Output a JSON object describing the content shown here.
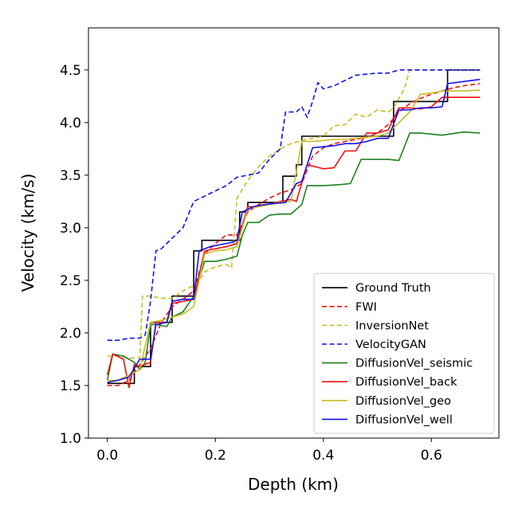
{
  "chart_data": {
    "type": "line",
    "title": "",
    "xlabel": "Depth (km)",
    "ylabel": "Velocity (km/s)",
    "xlim": [
      -0.035,
      0.725
    ],
    "ylim": [
      1.0,
      4.9
    ],
    "xticks": [
      0.0,
      0.2,
      0.4,
      0.6
    ],
    "xtick_labels": [
      "0.0",
      "0.2",
      "0.4",
      "0.6"
    ],
    "yticks": [
      1.0,
      1.5,
      2.0,
      2.5,
      3.0,
      3.5,
      4.0,
      4.5
    ],
    "ytick_labels": [
      "1.0",
      "1.5",
      "2.0",
      "2.5",
      "3.0",
      "3.5",
      "4.0",
      "4.5"
    ],
    "grid": false,
    "legend_position": "lower-right",
    "series": [
      {
        "name": "Ground Truth",
        "color": "#000000",
        "style": "solid",
        "x": [
          0,
          0.05,
          0.05,
          0.08,
          0.08,
          0.12,
          0.12,
          0.16,
          0.16,
          0.175,
          0.175,
          0.245,
          0.245,
          0.26,
          0.26,
          0.325,
          0.325,
          0.35,
          0.35,
          0.36,
          0.36,
          0.53,
          0.53,
          0.63,
          0.63,
          0.69
        ],
        "y": [
          1.52,
          1.52,
          1.68,
          1.68,
          2.1,
          2.1,
          2.35,
          2.35,
          2.78,
          2.78,
          2.88,
          2.88,
          3.15,
          3.15,
          3.24,
          3.24,
          3.49,
          3.49,
          3.6,
          3.6,
          3.87,
          3.87,
          4.2,
          4.2,
          4.5,
          4.5
        ]
      },
      {
        "name": "FWI",
        "color": "#ee1111",
        "style": "dashed",
        "x": [
          0,
          0.02,
          0.04,
          0.06,
          0.08,
          0.1,
          0.12,
          0.14,
          0.16,
          0.18,
          0.2,
          0.22,
          0.24,
          0.26,
          0.28,
          0.3,
          0.32,
          0.34,
          0.36,
          0.38,
          0.4,
          0.42,
          0.44,
          0.46,
          0.48,
          0.5,
          0.52,
          0.54,
          0.56,
          0.58,
          0.6,
          0.62,
          0.64,
          0.66,
          0.69
        ],
        "y": [
          1.5,
          1.5,
          1.55,
          1.7,
          1.85,
          2.1,
          2.25,
          2.32,
          2.4,
          2.75,
          2.85,
          2.93,
          2.93,
          3.15,
          3.22,
          3.28,
          3.33,
          3.36,
          3.42,
          3.68,
          3.76,
          3.8,
          3.82,
          3.84,
          3.86,
          3.9,
          3.98,
          4.1,
          4.18,
          4.23,
          4.27,
          4.3,
          4.33,
          4.35,
          4.37
        ]
      },
      {
        "name": "InversionNet",
        "color": "#c8be22",
        "style": "dashed",
        "x": [
          0,
          0.02,
          0.04,
          0.06,
          0.065,
          0.08,
          0.1,
          0.12,
          0.14,
          0.16,
          0.17,
          0.18,
          0.2,
          0.22,
          0.23,
          0.24,
          0.26,
          0.28,
          0.3,
          0.32,
          0.34,
          0.36,
          0.38,
          0.4,
          0.42,
          0.44,
          0.46,
          0.48,
          0.5,
          0.52,
          0.53,
          0.55,
          0.56,
          0.58,
          0.6,
          0.62,
          0.66,
          0.69
        ],
        "y": [
          1.78,
          1.78,
          1.76,
          1.76,
          2.35,
          2.35,
          2.33,
          2.33,
          2.4,
          2.45,
          2.5,
          2.58,
          2.63,
          2.65,
          2.62,
          3.28,
          3.45,
          3.58,
          3.68,
          3.75,
          3.8,
          3.83,
          3.85,
          3.87,
          3.97,
          3.98,
          4.08,
          4.05,
          4.12,
          4.1,
          4.14,
          4.32,
          4.5,
          4.5,
          4.5,
          4.5,
          4.5,
          4.5
        ]
      },
      {
        "name": "VelocityGAN",
        "color": "#1111ee",
        "style": "dashed",
        "x": [
          0,
          0.02,
          0.04,
          0.06,
          0.07,
          0.08,
          0.09,
          0.1,
          0.12,
          0.14,
          0.16,
          0.18,
          0.2,
          0.22,
          0.24,
          0.26,
          0.28,
          0.3,
          0.32,
          0.33,
          0.35,
          0.36,
          0.37,
          0.38,
          0.39,
          0.4,
          0.42,
          0.44,
          0.46,
          0.48,
          0.5,
          0.52,
          0.54,
          0.56,
          0.6,
          0.64,
          0.69
        ],
        "y": [
          1.93,
          1.93,
          1.95,
          1.95,
          1.98,
          2.3,
          2.78,
          2.8,
          2.9,
          3.0,
          3.25,
          3.3,
          3.35,
          3.4,
          3.48,
          3.5,
          3.52,
          3.65,
          3.75,
          4.1,
          4.1,
          4.15,
          4.05,
          4.2,
          4.38,
          4.32,
          4.35,
          4.4,
          4.45,
          4.46,
          4.47,
          4.47,
          4.5,
          4.5,
          4.5,
          4.5,
          4.5
        ]
      },
      {
        "name": "DiffusionVel_seismic",
        "color": "#1f801f",
        "style": "solid",
        "x": [
          0,
          0.01,
          0.03,
          0.05,
          0.06,
          0.07,
          0.08,
          0.09,
          0.11,
          0.12,
          0.14,
          0.16,
          0.18,
          0.2,
          0.22,
          0.24,
          0.25,
          0.26,
          0.28,
          0.3,
          0.32,
          0.34,
          0.36,
          0.37,
          0.4,
          0.43,
          0.45,
          0.47,
          0.5,
          0.52,
          0.54,
          0.56,
          0.58,
          0.6,
          0.62,
          0.66,
          0.69
        ],
        "y": [
          1.55,
          1.8,
          1.78,
          1.72,
          1.65,
          1.72,
          2.08,
          2.08,
          2.06,
          2.15,
          2.2,
          2.35,
          2.68,
          2.68,
          2.7,
          2.73,
          2.93,
          3.05,
          3.05,
          3.12,
          3.13,
          3.13,
          3.22,
          3.4,
          3.4,
          3.41,
          3.42,
          3.65,
          3.65,
          3.65,
          3.64,
          3.9,
          3.9,
          3.89,
          3.88,
          3.91,
          3.9
        ]
      },
      {
        "name": "DiffusionVel_back",
        "color": "#ee1111",
        "style": "solid",
        "x": [
          0,
          0.01,
          0.03,
          0.04,
          0.05,
          0.06,
          0.08,
          0.09,
          0.11,
          0.12,
          0.14,
          0.16,
          0.18,
          0.2,
          0.22,
          0.24,
          0.26,
          0.28,
          0.3,
          0.32,
          0.34,
          0.35,
          0.37,
          0.4,
          0.42,
          0.44,
          0.46,
          0.48,
          0.5,
          0.52,
          0.54,
          0.56,
          0.58,
          0.6,
          0.62,
          0.66,
          0.69
        ],
        "y": [
          1.6,
          1.8,
          1.75,
          1.48,
          1.7,
          1.68,
          1.72,
          2.1,
          2.1,
          2.28,
          2.3,
          2.32,
          2.78,
          2.8,
          2.82,
          2.85,
          3.2,
          3.2,
          3.22,
          3.25,
          3.27,
          3.25,
          3.6,
          3.56,
          3.57,
          3.73,
          3.73,
          3.9,
          3.9,
          3.93,
          4.14,
          4.14,
          4.13,
          4.15,
          4.24,
          4.24,
          4.24
        ]
      },
      {
        "name": "DiffusionVel_geo",
        "color": "#c8be22",
        "style": "solid",
        "x": [
          0,
          0.02,
          0.04,
          0.06,
          0.08,
          0.1,
          0.12,
          0.14,
          0.16,
          0.18,
          0.2,
          0.22,
          0.24,
          0.26,
          0.28,
          0.3,
          0.32,
          0.34,
          0.36,
          0.38,
          0.4,
          0.42,
          0.44,
          0.46,
          0.48,
          0.5,
          0.52,
          0.54,
          0.56,
          0.58,
          0.6,
          0.62,
          0.66,
          0.69
        ],
        "y": [
          1.55,
          1.55,
          1.6,
          1.65,
          2.1,
          2.12,
          2.15,
          2.18,
          2.25,
          2.75,
          2.78,
          2.79,
          2.82,
          3.18,
          3.2,
          3.22,
          3.24,
          3.25,
          3.82,
          3.82,
          3.83,
          3.84,
          3.84,
          3.85,
          3.86,
          3.87,
          3.9,
          4.0,
          4.1,
          4.27,
          4.28,
          4.3,
          4.3,
          4.31
        ]
      },
      {
        "name": "DiffusionVel_well",
        "color": "#1111ee",
        "style": "solid",
        "x": [
          0,
          0.02,
          0.04,
          0.06,
          0.08,
          0.09,
          0.11,
          0.12,
          0.14,
          0.16,
          0.17,
          0.19,
          0.21,
          0.23,
          0.24,
          0.25,
          0.27,
          0.29,
          0.31,
          0.33,
          0.35,
          0.36,
          0.38,
          0.4,
          0.42,
          0.44,
          0.46,
          0.48,
          0.5,
          0.52,
          0.54,
          0.56,
          0.58,
          0.6,
          0.62,
          0.63,
          0.66,
          0.69
        ],
        "y": [
          1.53,
          1.55,
          1.58,
          1.75,
          1.75,
          2.08,
          2.1,
          2.3,
          2.32,
          2.32,
          2.78,
          2.82,
          2.84,
          2.86,
          2.88,
          3.15,
          3.2,
          3.22,
          3.23,
          3.24,
          3.42,
          3.44,
          3.76,
          3.77,
          3.78,
          3.8,
          3.8,
          3.82,
          3.85,
          3.85,
          4.12,
          4.12,
          4.14,
          4.14,
          4.15,
          4.37,
          4.39,
          4.41
        ]
      }
    ]
  }
}
